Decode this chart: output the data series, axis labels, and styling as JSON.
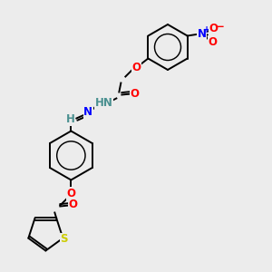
{
  "bg_color": "#ececec",
  "bond_color": "#000000",
  "atom_colors": {
    "O": "#ff0000",
    "N": "#0000ff",
    "S": "#cccc00",
    "HN": "#4a9090",
    "H": "#4a9090",
    "charge_plus": "#0000ff",
    "charge_minus": "#ff0000"
  },
  "figsize": [
    3.0,
    3.0
  ],
  "dpi": 100
}
